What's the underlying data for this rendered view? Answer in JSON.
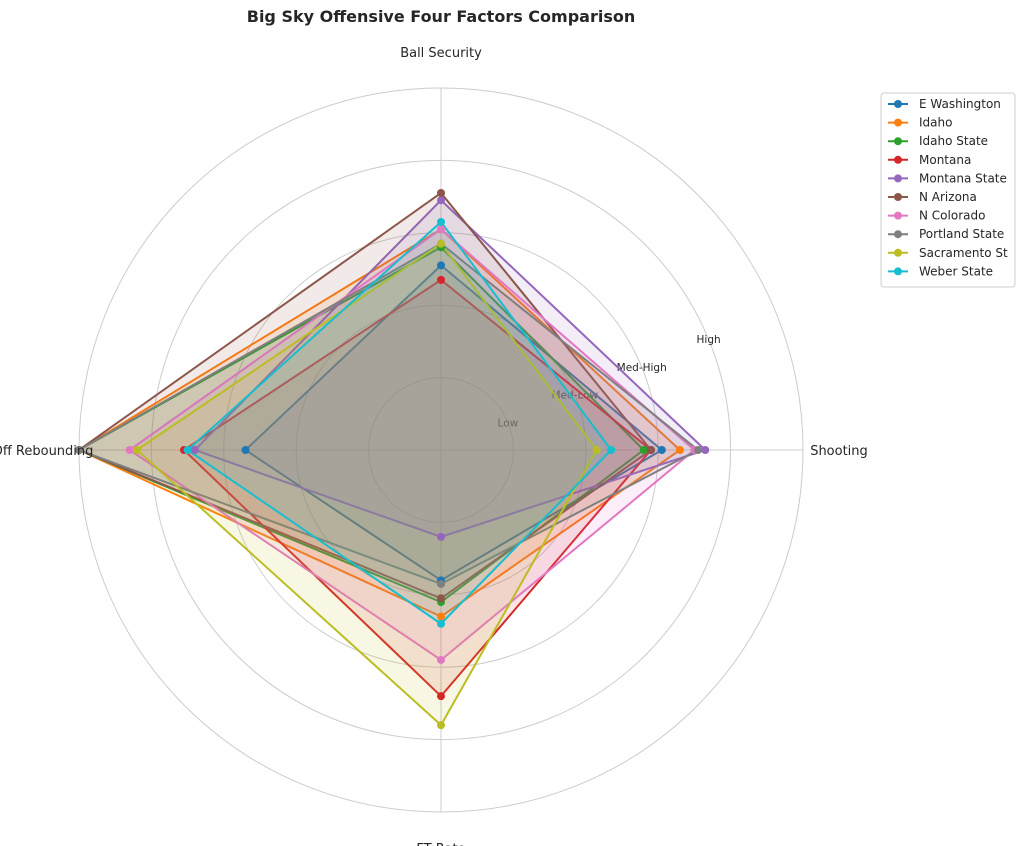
{
  "chart_data": {
    "type": "radar",
    "title": "Big Sky Offensive Four Factors Comparison",
    "axes": [
      "Shooting",
      "Ball Security",
      "Off Rebounding",
      "FT Rate"
    ],
    "ring_labels": [
      "Low",
      "Med-Low",
      "Med-High",
      "High"
    ],
    "rlim": [
      0,
      1
    ],
    "grid": true,
    "legend": "top-right",
    "series": [
      {
        "name": "E Washington",
        "color": "#1f77b4",
        "values": [
          0.61,
          0.51,
          0.54,
          0.36
        ]
      },
      {
        "name": "Idaho",
        "color": "#ff7f0e",
        "values": [
          0.66,
          0.61,
          1.0,
          0.46
        ]
      },
      {
        "name": "Idaho State",
        "color": "#2ca02c",
        "values": [
          0.56,
          0.56,
          1.0,
          0.42
        ]
      },
      {
        "name": "Montana",
        "color": "#d62728",
        "values": [
          0.58,
          0.47,
          0.71,
          0.68
        ]
      },
      {
        "name": "Montana State",
        "color": "#9467bd",
        "values": [
          0.73,
          0.69,
          0.68,
          0.24
        ]
      },
      {
        "name": "N Arizona",
        "color": "#8c564b",
        "values": [
          0.58,
          0.71,
          1.0,
          0.41
        ]
      },
      {
        "name": "N Colorado",
        "color": "#e377c2",
        "values": [
          0.7,
          0.61,
          0.86,
          0.58
        ]
      },
      {
        "name": "Portland State",
        "color": "#7f7f7f",
        "values": [
          0.71,
          0.57,
          1.0,
          0.37
        ]
      },
      {
        "name": "Sacramento St",
        "color": "#bcbd22",
        "values": [
          0.43,
          0.57,
          0.84,
          0.76
        ]
      },
      {
        "name": "Weber State",
        "color": "#17becf",
        "values": [
          0.47,
          0.63,
          0.7,
          0.48
        ]
      }
    ]
  }
}
